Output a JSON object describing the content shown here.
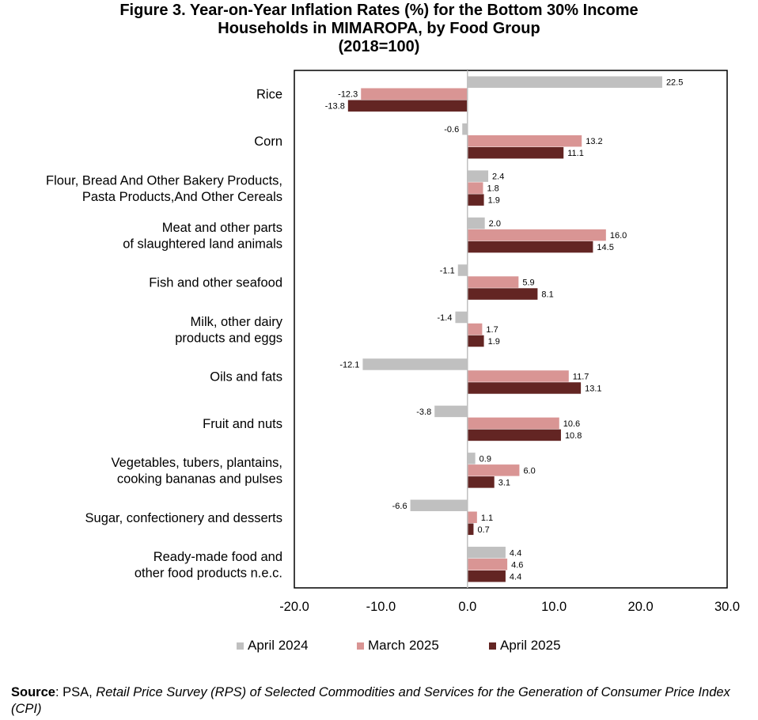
{
  "title_lines": [
    "Figure 3. Year-on-Year Inflation Rates (%) for the Bottom 30% Income",
    "Households in MIMAROPA, by Food Group",
    "(2018=100)"
  ],
  "source": {
    "label": "Source",
    "agency": ": PSA, ",
    "title": "Retail Price Survey (RPS) of Selected Commodities and Services for the Generation of Consumer Price Index (CPI)"
  },
  "colors": {
    "April 2024": "#c0c0c0",
    "March 2025": "#d99594",
    "April 2025": "#632523"
  },
  "chart_data": {
    "type": "bar",
    "orientation": "horizontal",
    "title": "Figure 3. Year-on-Year Inflation Rates (%) for the Bottom 30% Income Households in MIMAROPA, by Food Group (2018=100)",
    "xlabel": "",
    "ylabel": "",
    "xlim": [
      -20,
      30
    ],
    "xticks": [
      "-20.0",
      "-10.0",
      "0.0",
      "10.0",
      "20.0",
      "30.0"
    ],
    "grid": false,
    "legend_position": "bottom",
    "categories": [
      [
        "Rice"
      ],
      [
        "Corn"
      ],
      [
        "Flour, Bread And Other Bakery Products,",
        "Pasta Products,And Other Cereals"
      ],
      [
        "Meat and other parts",
        "of slaughtered land animals"
      ],
      [
        "Fish and other seafood"
      ],
      [
        "Milk, other dairy",
        "products and eggs"
      ],
      [
        "Oils and fats"
      ],
      [
        "Fruit and nuts"
      ],
      [
        "Vegetables, tubers, plantains,",
        "cooking bananas and pulses"
      ],
      [
        "Sugar, confectionery and desserts"
      ],
      [
        "Ready-made food and",
        "other food products n.e.c."
      ]
    ],
    "series": [
      {
        "name": "April 2024",
        "values": [
          22.5,
          -0.6,
          2.4,
          2.0,
          -1.1,
          -1.4,
          -12.1,
          -3.8,
          0.9,
          -6.6,
          4.4
        ],
        "labels": [
          "22.5",
          "-0.6",
          "2.4",
          "2.0",
          "-1.1",
          "-1.4",
          "-12.1",
          "-3.8",
          "0.9",
          "-6.6",
          "4.4"
        ]
      },
      {
        "name": "March 2025",
        "values": [
          -12.3,
          13.2,
          1.8,
          16.0,
          5.9,
          1.7,
          11.7,
          10.6,
          6.0,
          1.1,
          4.6
        ],
        "labels": [
          "-12.3",
          "13.2",
          "1.8",
          "16.0",
          "5.9",
          "1.7",
          "11.7",
          "10.6",
          "6.0",
          "1.1",
          "4.6"
        ]
      },
      {
        "name": "April 2025",
        "values": [
          -13.8,
          11.1,
          1.9,
          14.5,
          8.1,
          1.9,
          13.1,
          10.8,
          3.1,
          0.7,
          4.4
        ],
        "labels": [
          "-13.8",
          "11.1",
          "1.9",
          "14.5",
          "8.1",
          "1.9",
          "13.1",
          "10.8",
          "3.1",
          "0.7",
          "4.4"
        ]
      }
    ]
  }
}
